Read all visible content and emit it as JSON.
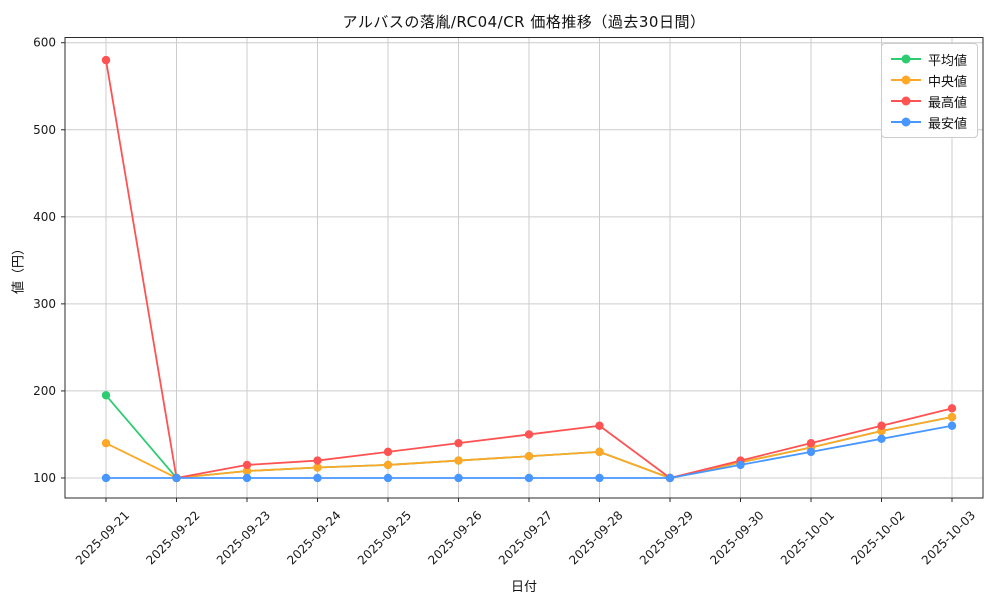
{
  "chart_data": {
    "type": "line",
    "title": "アルバスの落胤/RC04/CR  価格推移（過去30日間）",
    "xlabel": "日付",
    "ylabel": "値（円）",
    "categories": [
      "2025-09-21",
      "2025-09-22",
      "2025-09-23",
      "2025-09-24",
      "2025-09-25",
      "2025-09-26",
      "2025-09-27",
      "2025-09-28",
      "2025-09-29",
      "2025-09-30",
      "2025-10-01",
      "2025-10-02",
      "2025-10-03"
    ],
    "series": [
      {
        "name": "平均値",
        "role": "average",
        "color": "#2ECC71",
        "values": [
          195,
          100,
          108,
          112,
          115,
          120,
          125,
          130,
          100,
          118,
          135,
          154,
          170
        ]
      },
      {
        "name": "中央値",
        "role": "median",
        "color": "#FFA726",
        "values": [
          140,
          100,
          108,
          112,
          115,
          120,
          125,
          130,
          100,
          118,
          135,
          154,
          170
        ]
      },
      {
        "name": "最高値",
        "role": "max",
        "color": "#FF5252",
        "values": [
          580,
          100,
          115,
          120,
          130,
          140,
          150,
          160,
          100,
          120,
          140,
          160,
          180
        ]
      },
      {
        "name": "最安値",
        "role": "min",
        "color": "#4896FF",
        "values": [
          100,
          100,
          100,
          100,
          100,
          100,
          100,
          100,
          100,
          115,
          130,
          145,
          160
        ]
      }
    ],
    "y_ticks": [
      100,
      200,
      300,
      400,
      500,
      600
    ],
    "ylim": [
      77,
      606
    ],
    "grid": true,
    "legend_position": "upper right"
  },
  "colors": {
    "background": "#ffffff",
    "grid": "#cccccc",
    "spine": "#2b2b2b",
    "tick_text": "#1a1a1a"
  }
}
